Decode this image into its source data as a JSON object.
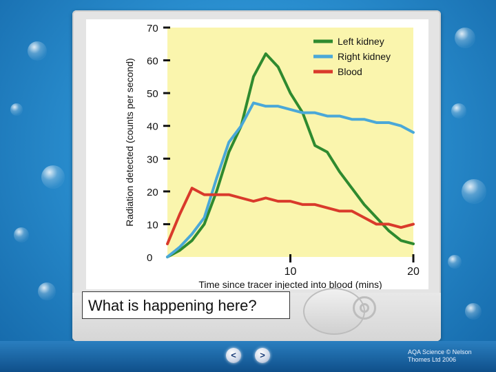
{
  "chart_data": {
    "type": "line",
    "title": "",
    "xlabel": "Time since tracer injected into blood (mins)",
    "ylabel": "Radiation detected (counts per second)",
    "xlim": [
      0,
      20
    ],
    "ylim": [
      0,
      70
    ],
    "x_ticks": [
      10,
      20
    ],
    "y_ticks": [
      0,
      10,
      20,
      30,
      40,
      50,
      60,
      70
    ],
    "legend_position": "top-right",
    "series": [
      {
        "name": "Left kidney",
        "color": "#2f8a2f",
        "x": [
          0,
          1,
          2,
          3,
          4,
          5,
          6,
          7,
          8,
          9,
          10,
          11,
          12,
          13,
          14,
          15,
          16,
          17,
          18,
          19,
          20
        ],
        "y": [
          0,
          2,
          5,
          10,
          20,
          32,
          40,
          55,
          62,
          58,
          50,
          44,
          34,
          32,
          26,
          21,
          16,
          12,
          8,
          5,
          4
        ]
      },
      {
        "name": "Right kidney",
        "color": "#4aa8d8",
        "x": [
          0,
          1,
          2,
          3,
          4,
          5,
          6,
          7,
          8,
          9,
          10,
          11,
          12,
          13,
          14,
          15,
          16,
          17,
          18,
          19,
          20
        ],
        "y": [
          0,
          3,
          7,
          12,
          24,
          35,
          40,
          47,
          46,
          46,
          45,
          44,
          44,
          43,
          43,
          42,
          42,
          41,
          41,
          40,
          38
        ]
      },
      {
        "name": "Blood",
        "color": "#d93a2b",
        "x": [
          0,
          1,
          2,
          3,
          4,
          5,
          6,
          7,
          8,
          9,
          10,
          11,
          12,
          13,
          14,
          15,
          16,
          17,
          18,
          19,
          20
        ],
        "y": [
          4,
          13,
          21,
          19,
          19,
          19,
          18,
          17,
          18,
          17,
          17,
          16,
          16,
          15,
          14,
          14,
          12,
          10,
          10,
          9,
          10
        ]
      }
    ]
  },
  "question_text": "What is happening here?",
  "nav": {
    "prev": "<",
    "next": ">"
  },
  "credit": {
    "line1": "AQA Science © Nelson",
    "line2": "Thomes Ltd 2006"
  }
}
